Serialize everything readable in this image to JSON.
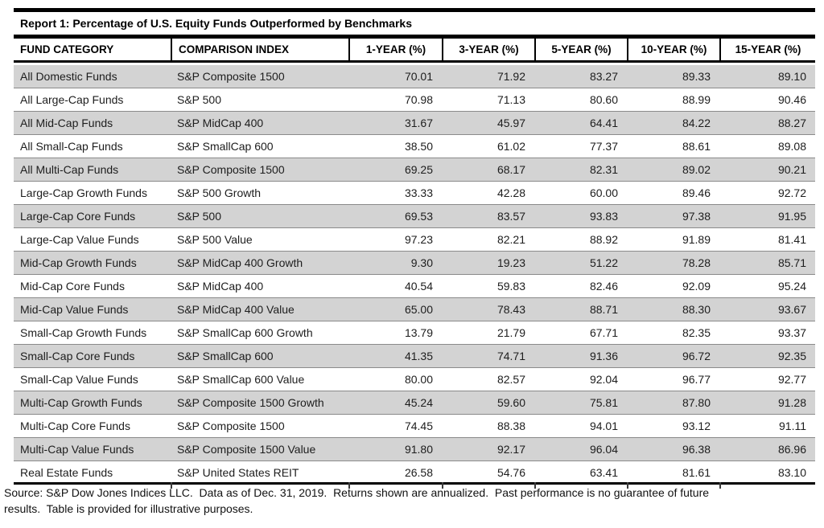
{
  "report": {
    "title": "Report 1: Percentage of U.S. Equity Funds Outperformed by Benchmarks",
    "columns": [
      "FUND CATEGORY",
      "COMPARISON INDEX",
      "1-YEAR (%)",
      "3-YEAR (%)",
      "5-YEAR (%)",
      "10-YEAR (%)",
      "15-YEAR (%)"
    ],
    "rows": [
      {
        "category": "All Domestic Funds",
        "index": "S&P Composite 1500",
        "y1": "70.01",
        "y3": "71.92",
        "y5": "83.27",
        "y10": "89.33",
        "y15": "89.10"
      },
      {
        "category": "All Large-Cap Funds",
        "index": "S&P 500",
        "y1": "70.98",
        "y3": "71.13",
        "y5": "80.60",
        "y10": "88.99",
        "y15": "90.46"
      },
      {
        "category": "All Mid-Cap Funds",
        "index": "S&P MidCap 400",
        "y1": "31.67",
        "y3": "45.97",
        "y5": "64.41",
        "y10": "84.22",
        "y15": "88.27"
      },
      {
        "category": "All Small-Cap Funds",
        "index": "S&P SmallCap 600",
        "y1": "38.50",
        "y3": "61.02",
        "y5": "77.37",
        "y10": "88.61",
        "y15": "89.08"
      },
      {
        "category": "All Multi-Cap Funds",
        "index": "S&P Composite 1500",
        "y1": "69.25",
        "y3": "68.17",
        "y5": "82.31",
        "y10": "89.02",
        "y15": "90.21"
      },
      {
        "category": "Large-Cap Growth Funds",
        "index": "S&P 500 Growth",
        "y1": "33.33",
        "y3": "42.28",
        "y5": "60.00",
        "y10": "89.46",
        "y15": "92.72"
      },
      {
        "category": "Large-Cap Core Funds",
        "index": "S&P 500",
        "y1": "69.53",
        "y3": "83.57",
        "y5": "93.83",
        "y10": "97.38",
        "y15": "91.95"
      },
      {
        "category": "Large-Cap Value Funds",
        "index": "S&P 500 Value",
        "y1": "97.23",
        "y3": "82.21",
        "y5": "88.92",
        "y10": "91.89",
        "y15": "81.41"
      },
      {
        "category": "Mid-Cap Growth Funds",
        "index": "S&P MidCap 400 Growth",
        "y1": "9.30",
        "y3": "19.23",
        "y5": "51.22",
        "y10": "78.28",
        "y15": "85.71"
      },
      {
        "category": "Mid-Cap Core Funds",
        "index": "S&P MidCap 400",
        "y1": "40.54",
        "y3": "59.83",
        "y5": "82.46",
        "y10": "92.09",
        "y15": "95.24"
      },
      {
        "category": "Mid-Cap Value Funds",
        "index": "S&P MidCap 400 Value",
        "y1": "65.00",
        "y3": "78.43",
        "y5": "88.71",
        "y10": "88.30",
        "y15": "93.67"
      },
      {
        "category": "Small-Cap Growth Funds",
        "index": "S&P SmallCap 600 Growth",
        "y1": "13.79",
        "y3": "21.79",
        "y5": "67.71",
        "y10": "82.35",
        "y15": "93.37"
      },
      {
        "category": "Small-Cap Core Funds",
        "index": "S&P SmallCap 600",
        "y1": "41.35",
        "y3": "74.71",
        "y5": "91.36",
        "y10": "96.72",
        "y15": "92.35"
      },
      {
        "category": "Small-Cap Value Funds",
        "index": "S&P SmallCap 600 Value",
        "y1": "80.00",
        "y3": "82.57",
        "y5": "92.04",
        "y10": "96.77",
        "y15": "92.77"
      },
      {
        "category": "Multi-Cap Growth Funds",
        "index": "S&P Composite 1500 Growth",
        "y1": "45.24",
        "y3": "59.60",
        "y5": "75.81",
        "y10": "87.80",
        "y15": "91.28"
      },
      {
        "category": "Multi-Cap Core Funds",
        "index": "S&P Composite 1500",
        "y1": "74.45",
        "y3": "88.38",
        "y5": "94.01",
        "y10": "93.12",
        "y15": "91.11"
      },
      {
        "category": "Multi-Cap Value Funds",
        "index": "S&P Composite 1500 Value",
        "y1": "91.80",
        "y3": "92.17",
        "y5": "96.04",
        "y10": "96.38",
        "y15": "86.96"
      },
      {
        "category": "Real Estate Funds",
        "index": "S&P United States REIT",
        "y1": "26.58",
        "y3": "54.76",
        "y5": "63.41",
        "y10": "81.61",
        "y15": "83.10"
      }
    ],
    "footnote_line1": "Source: S&P Dow Jones Indices LLC.  Data as of Dec. 31, 2019.  Returns shown are annualized.  Past performance is no guarantee of future",
    "footnote_line2": "results.  Table is provided for illustrative purposes.",
    "colors": {
      "stripe_gray": "#d3d3d3",
      "rule_black": "#000000",
      "row_separator": "#8a8a8a"
    }
  }
}
